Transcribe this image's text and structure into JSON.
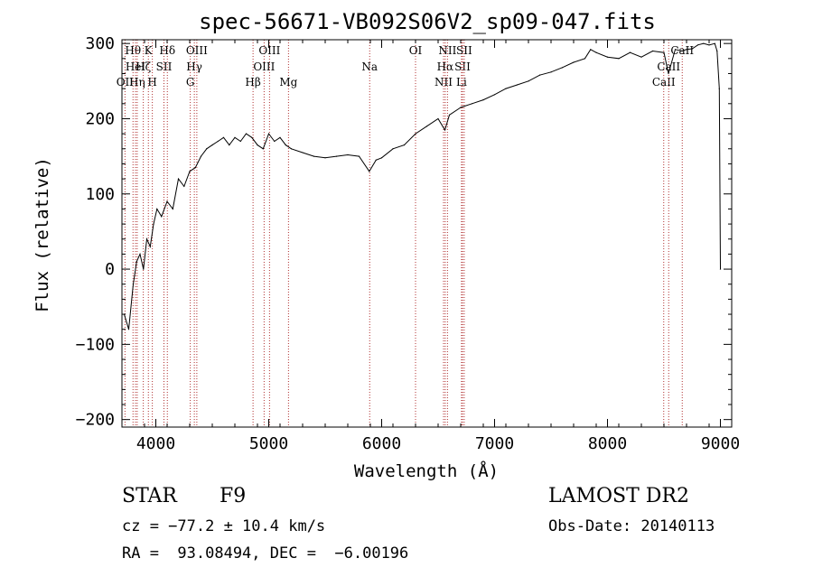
{
  "chart_data": {
    "type": "line",
    "title": "spec-56671-VB092S06V2_sp09-047.fits",
    "xlabel": "Wavelength (Å)",
    "ylabel": "Flux (relative)",
    "xlim": [
      3700,
      9100
    ],
    "ylim": [
      -210,
      305
    ],
    "xticks": [
      4000,
      5000,
      6000,
      7000,
      8000,
      9000
    ],
    "xtick_labels": [
      "4000",
      "5000",
      "6000",
      "7000",
      "8000",
      "9000"
    ],
    "yticks": [
      -200,
      -100,
      0,
      100,
      200,
      300
    ],
    "ytick_labels": [
      "−200",
      "−100",
      "0",
      "100",
      "200",
      "300"
    ],
    "grid": false,
    "line_color": "#000000",
    "marker_color": "#b03030",
    "series": [
      {
        "x": [
          3720,
          3760,
          3800,
          3830,
          3860,
          3890,
          3920,
          3950,
          3980,
          4010,
          4050,
          4100,
          4150,
          4200,
          4250,
          4300,
          4350,
          4400,
          4450,
          4500,
          4550,
          4600,
          4650,
          4700,
          4750,
          4800,
          4850,
          4900,
          4950,
          5000,
          5050,
          5100,
          5150,
          5200,
          5300,
          5400,
          5500,
          5600,
          5700,
          5800,
          5890,
          5950,
          6000,
          6100,
          6200,
          6300,
          6400,
          6500,
          6560,
          6600,
          6700,
          6800,
          6900,
          7000,
          7100,
          7200,
          7300,
          7400,
          7500,
          7600,
          7700,
          7800,
          7850,
          7900,
          8000,
          8100,
          8200,
          8300,
          8400,
          8500,
          8540,
          8600,
          8660,
          8700,
          8750,
          8800,
          8850,
          8900,
          8950,
          8970,
          8990,
          9000
        ],
        "y": [
          -60,
          -80,
          -20,
          10,
          20,
          0,
          40,
          30,
          60,
          80,
          70,
          90,
          80,
          120,
          110,
          130,
          135,
          150,
          160,
          165,
          170,
          175,
          165,
          175,
          170,
          180,
          175,
          165,
          160,
          180,
          170,
          175,
          165,
          160,
          155,
          150,
          148,
          150,
          152,
          150,
          130,
          145,
          148,
          160,
          165,
          180,
          190,
          200,
          185,
          205,
          215,
          220,
          225,
          232,
          240,
          245,
          250,
          258,
          262,
          268,
          275,
          280,
          292,
          288,
          282,
          280,
          288,
          282,
          290,
          288,
          260,
          292,
          290,
          292,
          293,
          298,
          300,
          298,
          300,
          290,
          240,
          0
        ]
      }
    ],
    "lines": [
      {
        "x": 3727,
        "label": "OII",
        "row": 2
      },
      {
        "x": 3798,
        "label": "Hθ",
        "row": 0
      },
      {
        "x": 3820,
        "label": "HeI",
        "row": 1
      },
      {
        "x": 3835,
        "label": "Hη",
        "row": 2
      },
      {
        "x": 3889,
        "label": "Hζ",
        "row": 1
      },
      {
        "x": 3934,
        "label": "K",
        "row": 0
      },
      {
        "x": 3969,
        "label": "H",
        "row": 2
      },
      {
        "x": 4072,
        "label": "SII",
        "row": 1
      },
      {
        "x": 4102,
        "label": "Hδ",
        "row": 0
      },
      {
        "x": 4305,
        "label": "G",
        "row": 2
      },
      {
        "x": 4341,
        "label": "Hγ",
        "row": 1
      },
      {
        "x": 4363,
        "label": "OIII",
        "row": 0
      },
      {
        "x": 4861,
        "label": "Hβ",
        "row": 2
      },
      {
        "x": 4959,
        "label": "OIII",
        "row": 1
      },
      {
        "x": 5007,
        "label": "OIII",
        "row": 0
      },
      {
        "x": 5175,
        "label": "Mg",
        "row": 2
      },
      {
        "x": 5894,
        "label": "Na",
        "row": 1
      },
      {
        "x": 6300,
        "label": "OI",
        "row": 0
      },
      {
        "x": 6548,
        "label": "NII",
        "row": 2
      },
      {
        "x": 6563,
        "label": "Hα",
        "row": 1
      },
      {
        "x": 6583,
        "label": "NII",
        "row": 0
      },
      {
        "x": 6707,
        "label": "Li",
        "row": 2
      },
      {
        "x": 6716,
        "label": "SII",
        "row": 1
      },
      {
        "x": 6731,
        "label": "SII",
        "row": 0
      },
      {
        "x": 8498,
        "label": "CaII",
        "row": 2
      },
      {
        "x": 8542,
        "label": "CaII",
        "row": 1
      },
      {
        "x": 8662,
        "label": "CaII",
        "row": 0
      }
    ]
  },
  "info": {
    "class": "STAR",
    "subclass": "F9",
    "cz": "cz = −77.2 ± 10.4 km/s",
    "coords": "RA =  93.08494, DEC =  −6.00196",
    "survey": "LAMOST DR2",
    "obs_date": "Obs-Date: 20140113"
  }
}
